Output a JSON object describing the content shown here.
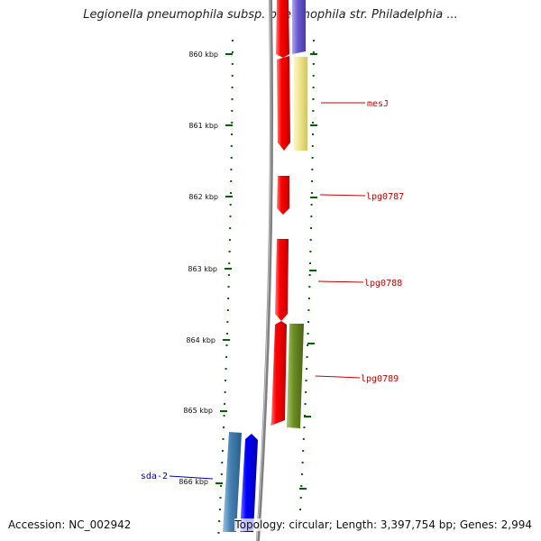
{
  "header": {
    "title": "Legionella pneumophila subsp. pneumophila str. Philadelphia ..."
  },
  "scale": {
    "ticks": [
      "860 kbp",
      "861 kbp",
      "862 kbp",
      "863 kbp",
      "864 kbp",
      "865 kbp",
      "866 kbp"
    ]
  },
  "genes": [
    {
      "label": "mesJ",
      "color": "#cc0000"
    },
    {
      "label": "lpg0787",
      "color": "#cc0000"
    },
    {
      "label": "lpg0788",
      "color": "#cc0000"
    },
    {
      "label": "lpg0789",
      "color": "#cc0000"
    },
    {
      "label": "sda-2",
      "color": "#0000aa"
    }
  ],
  "colors": {
    "red_feature": "#ff0000",
    "blue_feature": "#0000ff",
    "steelblue_feature": "#4682b4",
    "purple_feature": "#6a5acd",
    "khaki_feature": "#f0e68c",
    "olive_feature": "#6b8e23",
    "tick_green": "#006400",
    "backbone": "#808080"
  },
  "footer": {
    "accession": "Accession: NC_002942",
    "stats": "Topology: circular; Length: 3,397,754 bp; Genes: 2,994"
  }
}
